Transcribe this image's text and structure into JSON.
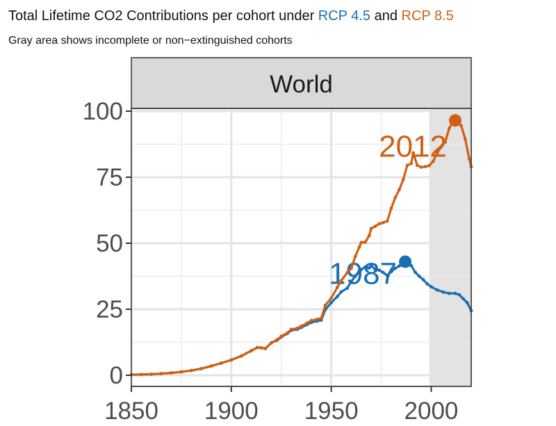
{
  "chart_data": {
    "type": "line",
    "title": {
      "prefix": "Total Lifetime CO2 Contributions per cohort under",
      "rcp45": "RCP 4.5",
      "joiner": "and",
      "rcp85": "RCP 8.5"
    },
    "subtitle": "Gray area shows incomplete or non−extinguished cohorts",
    "facet": "World",
    "xlim": [
      1850,
      2020
    ],
    "ylim": [
      0,
      100
    ],
    "x_ticks": [
      1850,
      1900,
      1950,
      2000
    ],
    "y_ticks": [
      0,
      25,
      50,
      75,
      100
    ],
    "shaded_region": {
      "x_start": 1999,
      "x_end": 2020,
      "color": "#e3e3e3"
    },
    "series": [
      {
        "name": "RCP 8.5",
        "color": "#cf6014",
        "x": [
          1850,
          1855,
          1860,
          1865,
          1870,
          1875,
          1880,
          1885,
          1890,
          1895,
          1900,
          1905,
          1910,
          1913,
          1915,
          1917,
          1920,
          1923,
          1925,
          1928,
          1930,
          1933,
          1935,
          1938,
          1940,
          1943,
          1945,
          1947,
          1950,
          1953,
          1955,
          1958,
          1960,
          1962,
          1964,
          1965,
          1967,
          1969,
          1970,
          1972,
          1974,
          1976,
          1978,
          1980,
          1982,
          1984,
          1986,
          1988,
          1990,
          1991,
          1993,
          1995,
          1997,
          1999,
          2001,
          2003,
          2005,
          2007,
          2009,
          2011,
          2012,
          2013,
          2015,
          2017,
          2019,
          2020
        ],
        "y": [
          0.2,
          0.3,
          0.4,
          0.6,
          0.9,
          1.3,
          1.8,
          2.5,
          3.5,
          4.6,
          5.8,
          7.3,
          9.3,
          10.5,
          10.4,
          10.1,
          12.3,
          13.5,
          14.8,
          16.0,
          17.4,
          17.8,
          18.6,
          19.8,
          20.7,
          21.2,
          21.6,
          26.5,
          29.2,
          33.3,
          35.8,
          38.9,
          40.5,
          45.0,
          48.5,
          50.3,
          50.4,
          52.9,
          55.6,
          56.4,
          57.4,
          57.8,
          58.4,
          63.2,
          67.3,
          70.2,
          74.1,
          79.5,
          80.2,
          84.2,
          79.5,
          78.8,
          79.0,
          79.4,
          81.0,
          84.2,
          86.5,
          88.3,
          93.5,
          96.3,
          96.8,
          96.2,
          94.5,
          89.5,
          82.0,
          79.0
        ],
        "peak": {
          "year": 2012,
          "value": 96.5
        },
        "peak_label": "2012"
      },
      {
        "name": "RCP 4.5",
        "color": "#1a6fb3",
        "x": [
          1850,
          1855,
          1860,
          1865,
          1870,
          1875,
          1880,
          1885,
          1890,
          1895,
          1900,
          1905,
          1910,
          1913,
          1915,
          1917,
          1920,
          1923,
          1925,
          1928,
          1930,
          1933,
          1935,
          1938,
          1940,
          1943,
          1945,
          1947,
          1950,
          1953,
          1955,
          1958,
          1960,
          1962,
          1964,
          1965,
          1967,
          1969,
          1970,
          1972,
          1974,
          1976,
          1978,
          1980,
          1982,
          1984,
          1986,
          1987,
          1988,
          1990,
          1992,
          1994,
          1996,
          1998,
          2000,
          2003,
          2006,
          2009,
          2012,
          2014,
          2016,
          2018,
          2020
        ],
        "y": [
          0.2,
          0.3,
          0.4,
          0.6,
          0.9,
          1.3,
          1.8,
          2.5,
          3.5,
          4.6,
          5.8,
          7.3,
          9.3,
          10.5,
          10.4,
          10.1,
          12.3,
          13.3,
          14.5,
          15.8,
          17.0,
          17.4,
          18.1,
          19.2,
          20.0,
          20.5,
          20.9,
          24.8,
          27.5,
          29.8,
          31.6,
          33.0,
          35.5,
          37.5,
          39.6,
          40.0,
          41.0,
          40.6,
          41.5,
          40.0,
          39.8,
          38.9,
          37.8,
          39.2,
          40.5,
          41.4,
          41.8,
          42.5,
          42.0,
          41.5,
          39.0,
          37.5,
          36.2,
          34.6,
          33.5,
          32.3,
          31.5,
          31.0,
          31.0,
          30.5,
          29.0,
          27.5,
          24.5
        ],
        "peak": {
          "year": 1987,
          "value": 43.0
        },
        "peak_label": "1987"
      }
    ]
  }
}
